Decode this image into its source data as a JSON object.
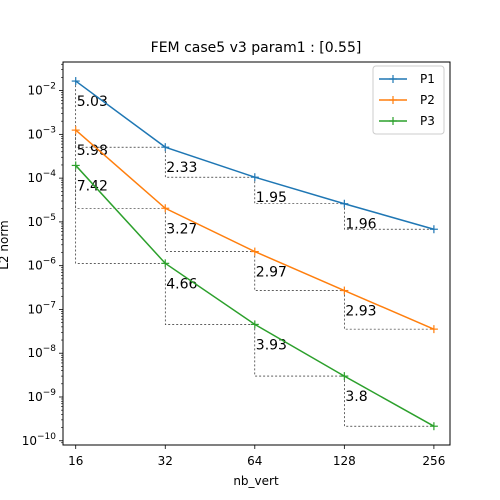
{
  "chart_data": {
    "type": "line",
    "title": "FEM case5 v3 param1 : [0.55]",
    "xlabel": "nb_vert",
    "ylabel": "L2 norm",
    "x_scale": "log2",
    "y_scale": "log10",
    "x": [
      16,
      32,
      64,
      128,
      256
    ],
    "x_tick_labels": [
      "16",
      "32",
      "64",
      "128",
      "256"
    ],
    "xlim": [
      14.5,
      290
    ],
    "ylim": [
      8e-11,
      0.045
    ],
    "y_ticks": [
      {
        "value": 1e-10,
        "base": "10",
        "exp": "−10"
      },
      {
        "value": 1e-09,
        "base": "10",
        "exp": "−9"
      },
      {
        "value": 1e-08,
        "base": "10",
        "exp": "−8"
      },
      {
        "value": 1e-07,
        "base": "10",
        "exp": "−7"
      },
      {
        "value": 1e-06,
        "base": "10",
        "exp": "−6"
      },
      {
        "value": 1e-05,
        "base": "10",
        "exp": "−5"
      },
      {
        "value": 0.0001,
        "base": "10",
        "exp": "−4"
      },
      {
        "value": 0.001,
        "base": "10",
        "exp": "−3"
      },
      {
        "value": 0.01,
        "base": "10",
        "exp": "−2"
      }
    ],
    "grid": false,
    "legend_position": "top-right",
    "series": [
      {
        "name": "P1",
        "color": "#1f77b4",
        "values": [
          0.0165,
          0.00051,
          0.000105,
          2.6e-05,
          6.8e-06
        ],
        "slopes": [
          "5.03",
          "2.33",
          "1.95",
          "1.96"
        ]
      },
      {
        "name": "P2",
        "color": "#ff7f0e",
        "values": [
          0.00125,
          2.05e-05,
          2.1e-06,
          2.7e-07,
          3.55e-08
        ],
        "slopes": [
          "5.98",
          "3.27",
          "2.97",
          "2.93"
        ]
      },
      {
        "name": "P3",
        "color": "#2ca02c",
        "values": [
          0.000195,
          1.13e-06,
          4.55e-08,
          3e-09,
          2.15e-10
        ],
        "slopes": [
          "7.42",
          "4.66",
          "3.93",
          "3.8"
        ]
      }
    ]
  }
}
